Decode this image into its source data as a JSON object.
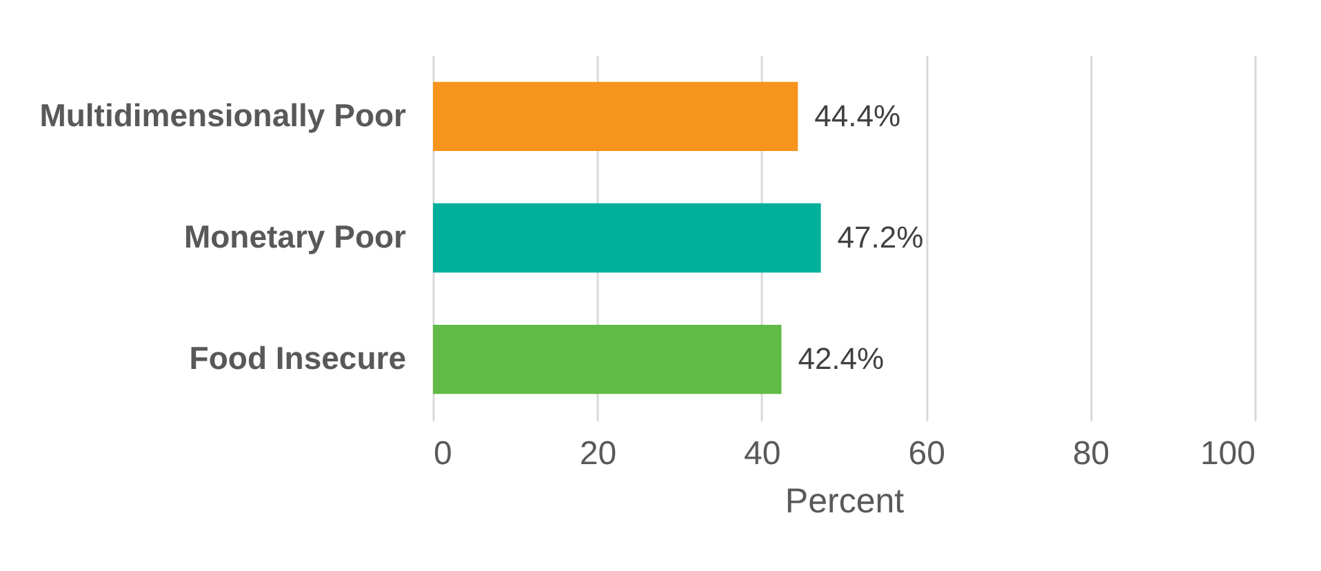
{
  "chart_data": {
    "type": "bar",
    "orientation": "horizontal",
    "categories": [
      "Multidimensionally Poor",
      "Monetary Poor",
      "Food Insecure"
    ],
    "values": [
      44.4,
      47.2,
      42.4
    ],
    "colors": [
      "#f7941d",
      "#00b09b",
      "#62bb46"
    ],
    "value_labels": [
      "44.4%",
      "47.2%",
      "42.4%"
    ],
    "xlabel": "Percent",
    "xlim": [
      0,
      100
    ],
    "xticks": [
      0,
      20,
      40,
      60,
      80,
      100
    ],
    "grid": "x"
  }
}
